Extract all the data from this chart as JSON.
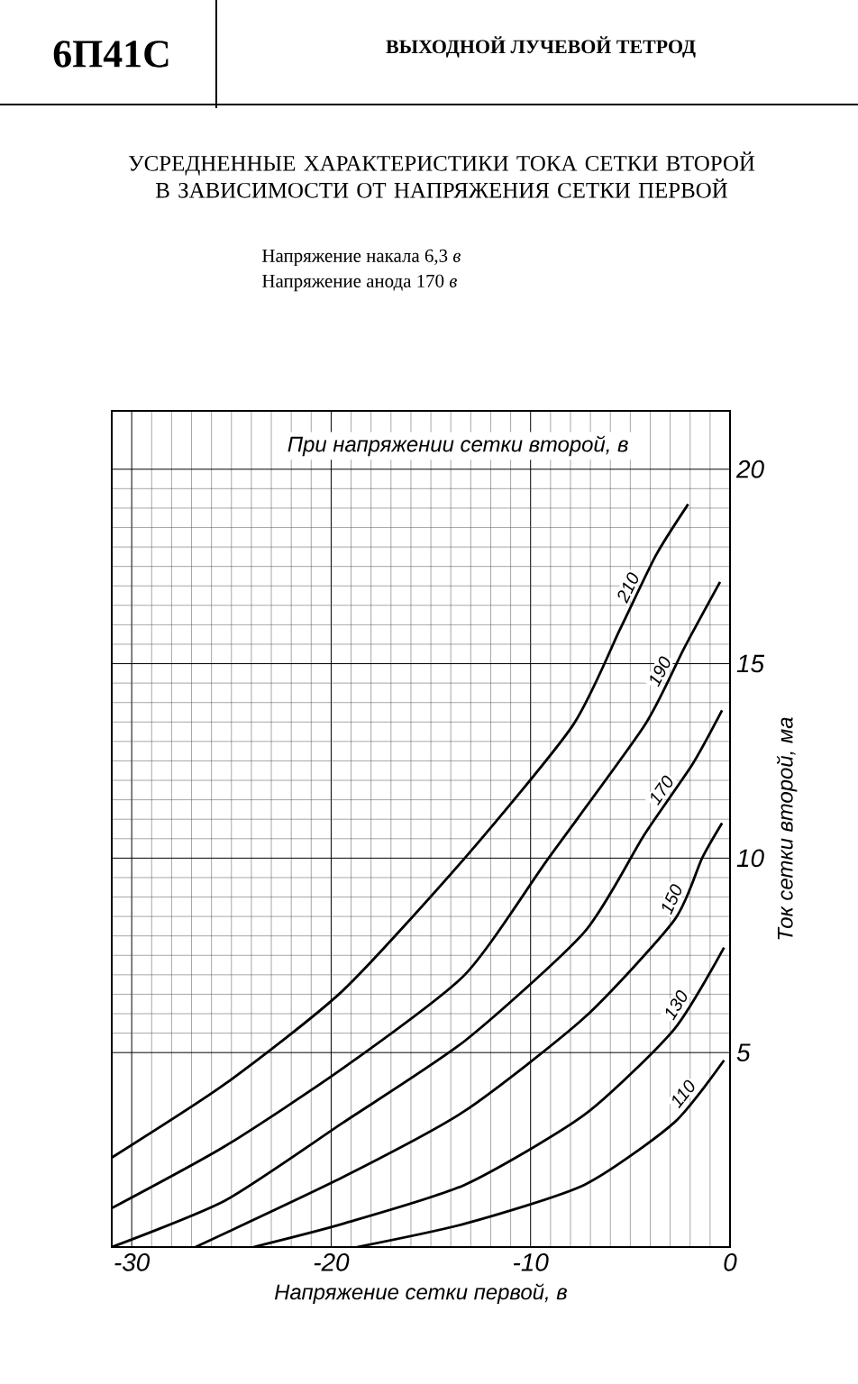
{
  "chart_data": {
    "type": "line",
    "title": "УСРЕДНЕННЫЕ ХАРАКТЕРИСТИКИ ТОКА СЕТКИ ВТОРОЙ В ЗАВИСИМОСТИ ОТ НАПРЯЖЕНИЯ СЕТКИ ПЕРВОЙ",
    "xlabel": "Напряжение сетки первой, в",
    "ylabel": "Ток сетки второй, ма",
    "legend_title": "При напряжении сетки второй, в",
    "annotations": [
      "6П41С",
      "ВЫХОДНОЙ ЛУЧЕВОЙ ТЕТРОД",
      "Напряжение накала 6,3 *в*",
      "Напряжение анода 170 *в*"
    ],
    "xlim": [
      -31,
      0
    ],
    "ylim": [
      0,
      21.5
    ],
    "xticks": [
      -30,
      -20,
      -10,
      0
    ],
    "yticks": [
      5,
      10,
      15,
      20
    ],
    "grid": true,
    "line_style": "solid",
    "series": [
      {
        "name": "210",
        "color": "#000000",
        "x": [
          -31,
          -25.3,
          -19.4,
          -13.3,
          -7.9,
          -5.5,
          -3.7,
          -2.1
        ],
        "values": [
          2.3,
          4.2,
          6.6,
          10.0,
          13.4,
          15.9,
          17.8,
          19.1
        ]
      },
      {
        "name": "190",
        "color": "#000000",
        "x": [
          -31,
          -25.3,
          -19.4,
          -13.3,
          -9.1,
          -4.3,
          -2.3,
          -0.5
        ],
        "values": [
          1.0,
          2.6,
          4.6,
          7.0,
          10.0,
          13.4,
          15.4,
          17.1
        ]
      },
      {
        "name": "170",
        "color": "#000000",
        "x": [
          -31,
          -25.3,
          -19.4,
          -13.3,
          -7.3,
          -4.3,
          -1.9,
          -0.4
        ],
        "values": [
          0,
          1.2,
          3.2,
          5.3,
          8.1,
          10.6,
          12.4,
          13.8
        ]
      },
      {
        "name": "150",
        "color": "#000000",
        "x": [
          -26.8,
          -19.4,
          -13.3,
          -7.3,
          -2.8,
          -1.4,
          -0.4
        ],
        "values": [
          0,
          1.8,
          3.5,
          5.9,
          8.4,
          10.0,
          10.9
        ]
      },
      {
        "name": "130",
        "color": "#000000",
        "x": [
          -23.9,
          -19.4,
          -13.3,
          -7.3,
          -2.8,
          -0.3
        ],
        "values": [
          0,
          0.6,
          1.6,
          3.4,
          5.6,
          7.7
        ]
      },
      {
        "name": "110",
        "color": "#000000",
        "x": [
          -18.7,
          -13.3,
          -7.3,
          -2.8,
          -0.3
        ],
        "values": [
          0,
          0.6,
          1.6,
          3.2,
          4.8
        ]
      }
    ]
  }
}
